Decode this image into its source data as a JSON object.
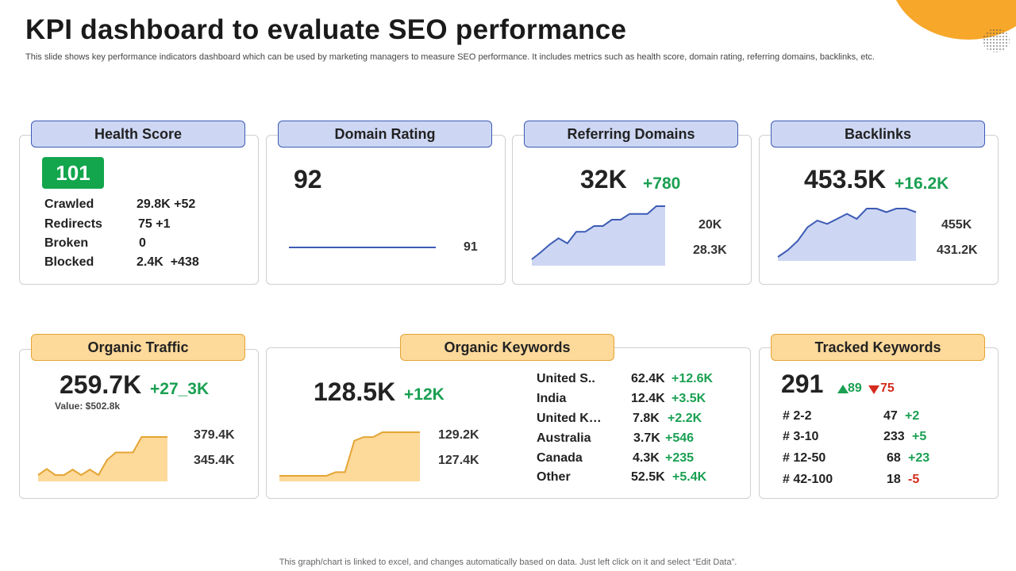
{
  "header": {
    "title": "KPI dashboard to evaluate SEO performance",
    "subtitle": "This slide shows key performance indicators dashboard which can be used by marketing managers to measure SEO performance. It includes metrics such as health score, domain rating, referring domains, backlinks, etc."
  },
  "footer": {
    "note": "This graph/chart is linked to excel,  and changes automatically based on data. Just left click on it and select “Edit Data”."
  },
  "colors": {
    "blue_fill": "#cdd7f3",
    "blue_line": "#3d5bb5",
    "orange_fill": "#fdd99a",
    "orange_line": "#e4a534",
    "green": "#1aa052",
    "red": "#d52b1e",
    "score_bg": "#13a64d"
  },
  "health": {
    "title": "Health Score",
    "score": "101",
    "rows": [
      {
        "label": "Crawled",
        "value": "29.8K +52"
      },
      {
        "label": "Redirects",
        "value": "75 +1"
      },
      {
        "label": "Broken",
        "value": "0"
      },
      {
        "label": "Blocked",
        "value": "2.4K  +438"
      }
    ]
  },
  "domain": {
    "title": "Domain Rating",
    "value": "92",
    "side": "91"
  },
  "referring": {
    "title": "Referring Domains",
    "value": "32K",
    "delta": "+780",
    "side_top": "20K",
    "side_bottom": "28.3K"
  },
  "backlinks": {
    "title": "Backlinks",
    "value": "453.5K",
    "delta": "+16.2K",
    "side_top": "455K",
    "side_bottom": "431.2K"
  },
  "traffic": {
    "title": "Organic Traffic",
    "value": "259.7K",
    "delta": "+27_3K",
    "sub": "Value: $502.8k",
    "side_top": "379.4K",
    "side_bottom": "345.4K"
  },
  "keywords": {
    "title": "Organic Keywords",
    "value": "128.5K",
    "delta": "+12K",
    "side_top": "129.2K",
    "side_bottom": "127.4K",
    "countries": [
      {
        "name": "United S..",
        "value": "62.4K",
        "delta": "+12.6K"
      },
      {
        "name": "India",
        "value": "12.4K",
        "delta": "+3.5K"
      },
      {
        "name": "United K…",
        "value": "7.8K",
        "delta": "+2.2K"
      },
      {
        "name": "Australia",
        "value": "3.7K",
        "delta": "+546"
      },
      {
        "name": "Canada",
        "value": "4.3K",
        "delta": "+235"
      },
      {
        "name": "Other",
        "value": "52.5K",
        "delta": "+5.4K"
      }
    ]
  },
  "tracked": {
    "title": "Tracked Keywords",
    "value": "291",
    "up": "89",
    "down": "75",
    "rows": [
      {
        "range": "# 2-2",
        "value": "47",
        "delta": "+2",
        "trend": "up"
      },
      {
        "range": "# 3-10",
        "value": "233",
        "delta": "+5",
        "trend": "up"
      },
      {
        "range": "# 12-50",
        "value": "68",
        "delta": "+23",
        "trend": "up"
      },
      {
        "range": "# 42-100",
        "value": "18",
        "delta": "-5",
        "trend": "down"
      }
    ]
  },
  "chart_data": [
    {
      "type": "line",
      "name_hint": "domain-rating-sparkline",
      "values": [
        92,
        92,
        92,
        92,
        92,
        92,
        92,
        92,
        92,
        92
      ]
    },
    {
      "type": "area",
      "name_hint": "referring-domains-sparkline",
      "values": [
        20.0,
        21.1,
        22.3,
        23.3,
        22.5,
        24.3,
        24.3,
        25.2,
        25.2,
        26.2,
        26.2,
        27.1,
        27.1,
        27.1,
        28.3,
        28.3
      ]
    },
    {
      "type": "area",
      "name_hint": "backlinks-sparkline",
      "values": [
        431.2,
        434.0,
        437.9,
        443.6,
        446.4,
        445.0,
        447.1,
        449.2,
        447.1,
        451.4,
        451.4,
        449.9,
        451.4,
        451.4,
        449.9
      ]
    },
    {
      "type": "area",
      "name_hint": "organic-traffic-sparkline",
      "values": [
        345.4,
        348.4,
        345.4,
        345.4,
        348.1,
        345.4,
        348.1,
        345.4,
        352.8,
        356.5,
        356.5,
        356.5,
        364.1,
        364.1,
        364.1,
        364.1
      ]
    },
    {
      "type": "area",
      "name_hint": "organic-keywords-sparkline",
      "values": [
        127.4,
        127.4,
        127.4,
        127.4,
        127.4,
        127.4,
        127.55,
        127.55,
        128.85,
        129.0,
        129.0,
        129.2,
        129.2,
        129.2,
        129.2,
        129.2
      ]
    }
  ]
}
